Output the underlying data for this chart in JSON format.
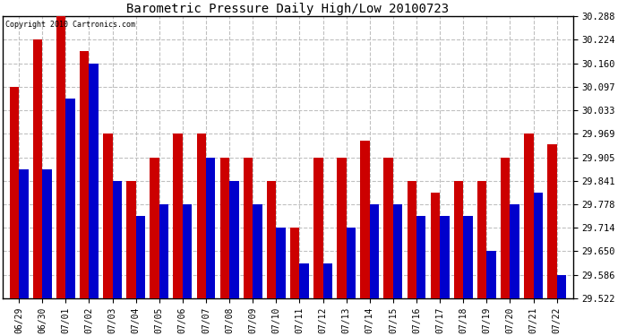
{
  "title": "Barometric Pressure Daily High/Low 20100723",
  "copyright": "Copyright 2010 Cartronics.com",
  "dates": [
    "06/29",
    "06/30",
    "07/01",
    "07/02",
    "07/03",
    "07/04",
    "07/05",
    "07/06",
    "07/07",
    "07/08",
    "07/09",
    "07/10",
    "07/11",
    "07/12",
    "07/13",
    "07/14",
    "07/15",
    "07/16",
    "07/17",
    "07/18",
    "07/19",
    "07/20",
    "07/21",
    "07/22"
  ],
  "highs": [
    30.097,
    30.224,
    30.288,
    30.192,
    29.969,
    29.841,
    29.905,
    29.969,
    29.969,
    29.905,
    29.905,
    29.841,
    29.714,
    29.905,
    29.905,
    29.95,
    29.905,
    29.841,
    29.81,
    29.841,
    29.841,
    29.905,
    29.969,
    29.94
  ],
  "lows": [
    29.873,
    29.873,
    30.065,
    30.16,
    29.841,
    29.746,
    29.778,
    29.778,
    29.905,
    29.841,
    29.778,
    29.714,
    29.618,
    29.618,
    29.714,
    29.778,
    29.778,
    29.746,
    29.746,
    29.746,
    29.65,
    29.778,
    29.81,
    29.586
  ],
  "high_color": "#cc0000",
  "low_color": "#0000cc",
  "background_color": "#ffffff",
  "plot_background": "#ffffff",
  "grid_color": "#c0c0c0",
  "yticks": [
    29.522,
    29.586,
    29.65,
    29.714,
    29.778,
    29.841,
    29.905,
    29.969,
    30.033,
    30.097,
    30.16,
    30.224,
    30.288
  ],
  "ymin": 29.522,
  "ymax": 30.288,
  "bar_width": 0.4
}
